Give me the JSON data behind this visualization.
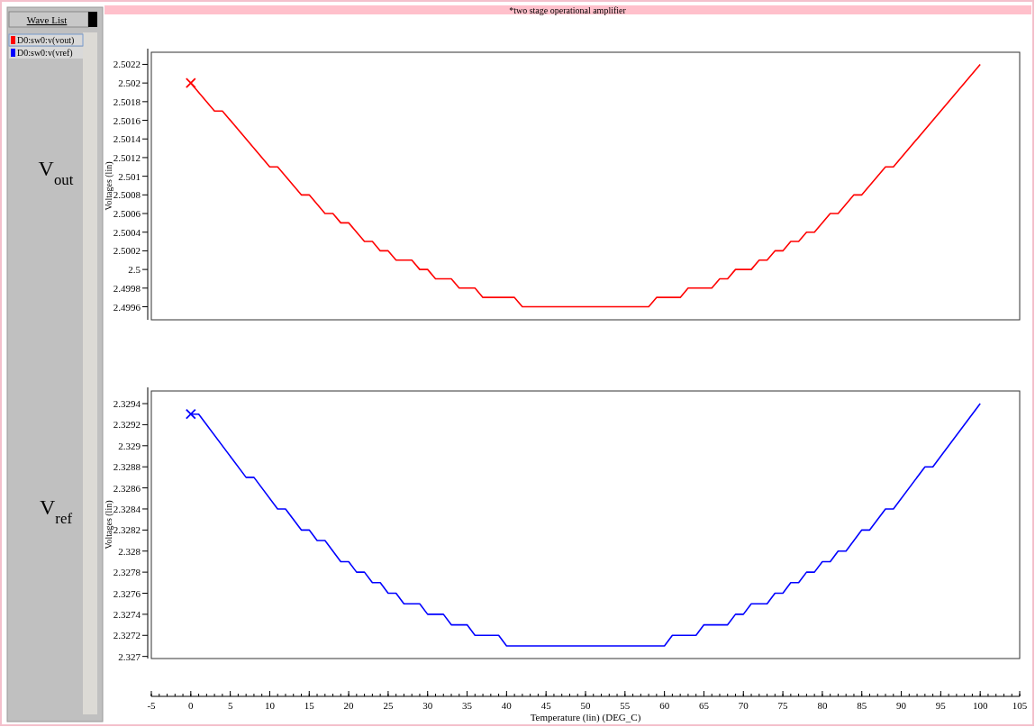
{
  "chart_data": [
    {
      "type": "line",
      "title": "*two stage operational amplifier",
      "legend_title": "Wave List",
      "annotations": [
        "V$_{out}$"
      ],
      "ylabel": "Voltages (lin)",
      "xlim": [
        -5,
        105
      ],
      "ylim": [
        2.49946,
        2.50233
      ],
      "yticks": [
        2.4996,
        2.4998,
        2.5,
        2.5002,
        2.5004,
        2.5006,
        2.5008,
        2.501,
        2.5012,
        2.5014,
        2.5016,
        2.5018,
        2.502,
        2.5022
      ],
      "tick_labels": "y",
      "legend": "left",
      "grid": false,
      "series": [
        {
          "name": "D0:sw0:v(vout)",
          "color": "#ff0000",
          "x": [
            0,
            3,
            4,
            10,
            11,
            14,
            15,
            17,
            18,
            19,
            20,
            22,
            23,
            24,
            25,
            26,
            28,
            29,
            30,
            31,
            33,
            34,
            36,
            37,
            41,
            42,
            58,
            59,
            62,
            63,
            66,
            67,
            68,
            69,
            71,
            72,
            73,
            74,
            75,
            76,
            77,
            78,
            79,
            81,
            82,
            84,
            85,
            88,
            89,
            100
          ],
          "values": [
            2.502,
            2.5017,
            2.5017,
            2.5011,
            2.5011,
            2.5008,
            2.5008,
            2.5006,
            2.5006,
            2.5005,
            2.5005,
            2.5003,
            2.5003,
            2.5002,
            2.5002,
            2.5001,
            2.5001,
            2.5,
            2.5,
            2.4999,
            2.4999,
            2.4998,
            2.4998,
            2.4997,
            2.4997,
            2.4996,
            2.4996,
            2.4997,
            2.4997,
            2.4998,
            2.4998,
            2.4999,
            2.4999,
            2.5,
            2.5,
            2.5001,
            2.5001,
            2.5002,
            2.5002,
            2.5003,
            2.5003,
            2.5004,
            2.5004,
            2.5006,
            2.5006,
            2.5008,
            2.5008,
            2.5011,
            2.5011,
            2.5022
          ]
        },
        {
          "type": "scatter",
          "marker": "cross",
          "color": "#ff0000",
          "x": [
            0
          ],
          "values": [
            2.502
          ]
        }
      ]
    },
    {
      "type": "line",
      "annotations": [
        "V$_{ref}$"
      ],
      "ylabel": "Voltages (lin)",
      "xlabel": "Temperature (lin) (DEG_C)",
      "xlim": [
        -5,
        105
      ],
      "xticks": [
        -5,
        0,
        5,
        10,
        15,
        20,
        25,
        30,
        35,
        40,
        45,
        50,
        55,
        60,
        65,
        70,
        75,
        80,
        85,
        90,
        95,
        100,
        105
      ],
      "ylim": [
        2.32698,
        2.32952
      ],
      "yticks": [
        2.327,
        2.3272,
        2.3274,
        2.3276,
        2.3278,
        2.328,
        2.3282,
        2.3284,
        2.3286,
        2.3288,
        2.329,
        2.3292,
        2.3294
      ],
      "legend": "left",
      "grid": false,
      "series": [
        {
          "name": "D0:sw0:v(vref)",
          "color": "#0000ff",
          "x": [
            0,
            1,
            7,
            8,
            11,
            12,
            14,
            15,
            16,
            17,
            19,
            20,
            21,
            22,
            23,
            24,
            25,
            26,
            27,
            29,
            30,
            32,
            33,
            35,
            36,
            39,
            40,
            60,
            61,
            64,
            65,
            68,
            69,
            70,
            71,
            73,
            74,
            75,
            76,
            77,
            78,
            79,
            80,
            81,
            82,
            83,
            85,
            86,
            88,
            89,
            93,
            94,
            100
          ],
          "values": [
            2.3293,
            2.3293,
            2.3287,
            2.3287,
            2.3284,
            2.3284,
            2.3282,
            2.3282,
            2.3281,
            2.3281,
            2.3279,
            2.3279,
            2.3278,
            2.3278,
            2.3277,
            2.3277,
            2.3276,
            2.3276,
            2.3275,
            2.3275,
            2.3274,
            2.3274,
            2.3273,
            2.3273,
            2.3272,
            2.3272,
            2.3271,
            2.3271,
            2.3272,
            2.3272,
            2.3273,
            2.3273,
            2.3274,
            2.3274,
            2.3275,
            2.3275,
            2.3276,
            2.3276,
            2.3277,
            2.3277,
            2.3278,
            2.3278,
            2.3279,
            2.3279,
            2.328,
            2.328,
            2.3282,
            2.3282,
            2.3284,
            2.3284,
            2.3288,
            2.3288,
            2.3294
          ]
        },
        {
          "type": "scatter",
          "marker": "cross",
          "color": "#0000ff",
          "x": [
            0
          ],
          "values": [
            2.3293
          ]
        }
      ]
    }
  ]
}
